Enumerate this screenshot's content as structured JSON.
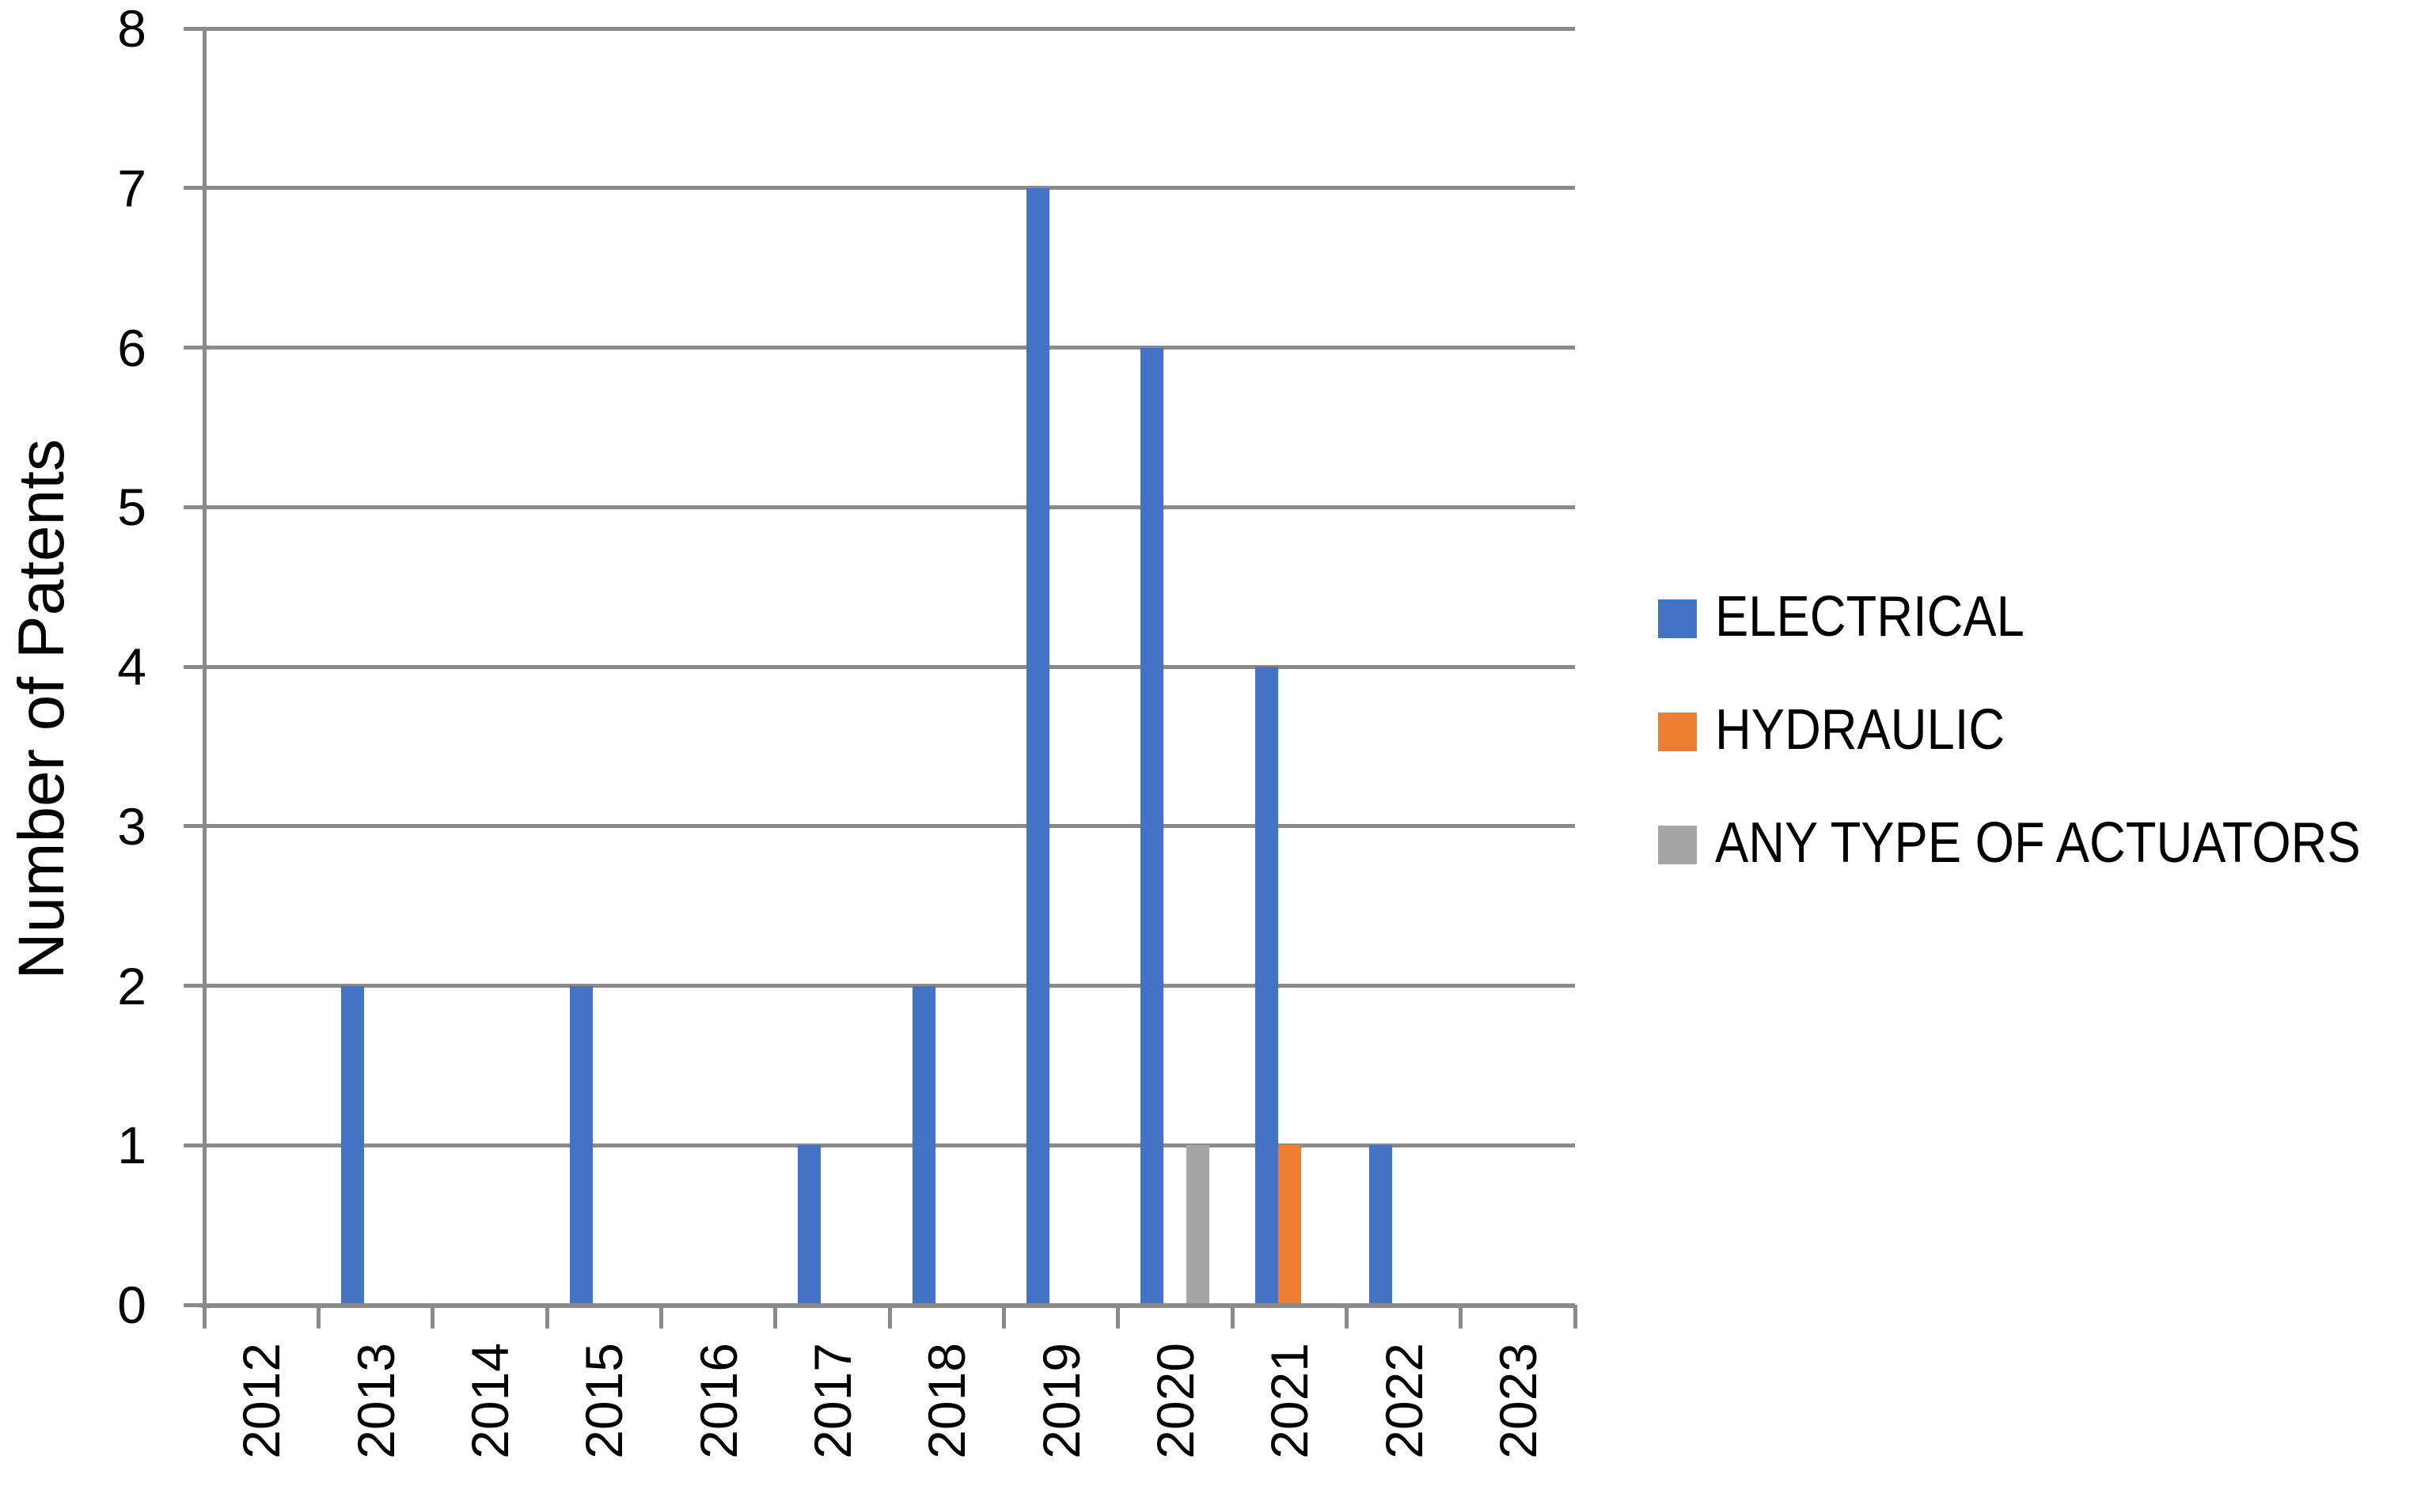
{
  "chart_data": {
    "type": "bar",
    "title": "",
    "ylabel": "Number of Patents",
    "xlabel": "",
    "categories": [
      "2012",
      "2013",
      "2014",
      "2015",
      "2016",
      "2017",
      "2018",
      "2019",
      "2020",
      "2021",
      "2022",
      "2023"
    ],
    "series": [
      {
        "name": "ELECTRICAL",
        "color": "#4472C4",
        "values": [
          0,
          2,
          0,
          2,
          0,
          1,
          2,
          7,
          6,
          4,
          1,
          0
        ]
      },
      {
        "name": "HYDRAULIC",
        "color": "#ED7D31",
        "values": [
          0,
          0,
          0,
          0,
          0,
          0,
          0,
          0,
          0,
          1,
          0,
          0
        ]
      },
      {
        "name": "ANY TYPE OF ACTUATORS",
        "color": "#A6A6A6",
        "values": [
          0,
          0,
          0,
          0,
          0,
          0,
          0,
          0,
          1,
          0,
          0,
          0
        ]
      }
    ],
    "ylim": [
      0,
      8
    ],
    "yticks": [
      0,
      1,
      2,
      3,
      4,
      5,
      6,
      7,
      8
    ],
    "grid": true,
    "legend_position": "right",
    "gridline_color": "#8A8A8A",
    "axis_color": "#8A8A8A",
    "text_color": "#000000"
  }
}
